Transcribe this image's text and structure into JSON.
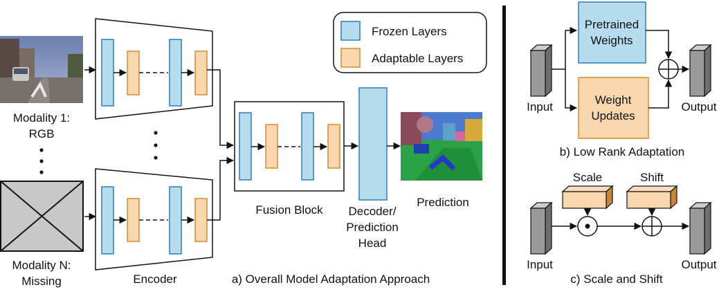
{
  "colors": {
    "frozen": "#b6dcee",
    "frozen_stroke": "#2a7fb8",
    "adapt": "#f9d7ae",
    "adapt_stroke": "#d98b2b",
    "box3d_top": "#f7dcc0",
    "box3d_side": "#c8853a",
    "tensor_front": "#9a9a9a",
    "tensor_top": "#cdcdcd",
    "tensor_side": "#6e6e6e"
  },
  "legend": {
    "frozen": "Frozen Layers",
    "adaptable": "Adaptable Layers"
  },
  "left": {
    "modality1_line1": "Modality 1:",
    "modality1_line2": "RGB",
    "modalityN_line1": "Modality N:",
    "modalityN_line2": "Missing",
    "encoder": "Encoder",
    "fusion": "Fusion Block",
    "head_line1": "Decoder/",
    "head_line2": "Prediction",
    "head_line3": "Head",
    "prediction": "Prediction",
    "caption": "a) Overall Model Adaptation Approach"
  },
  "lora": {
    "pretrained_line1": "Pretrained",
    "pretrained_line2": "Weights",
    "updates_line1": "Weight",
    "updates_line2": "Updates",
    "input": "Input",
    "output": "Output",
    "caption": "b) Low Rank Adaptation"
  },
  "ss": {
    "scale": "Scale",
    "shift": "Shift",
    "input": "Input",
    "output": "Output",
    "caption": "c) Scale and Shift"
  }
}
